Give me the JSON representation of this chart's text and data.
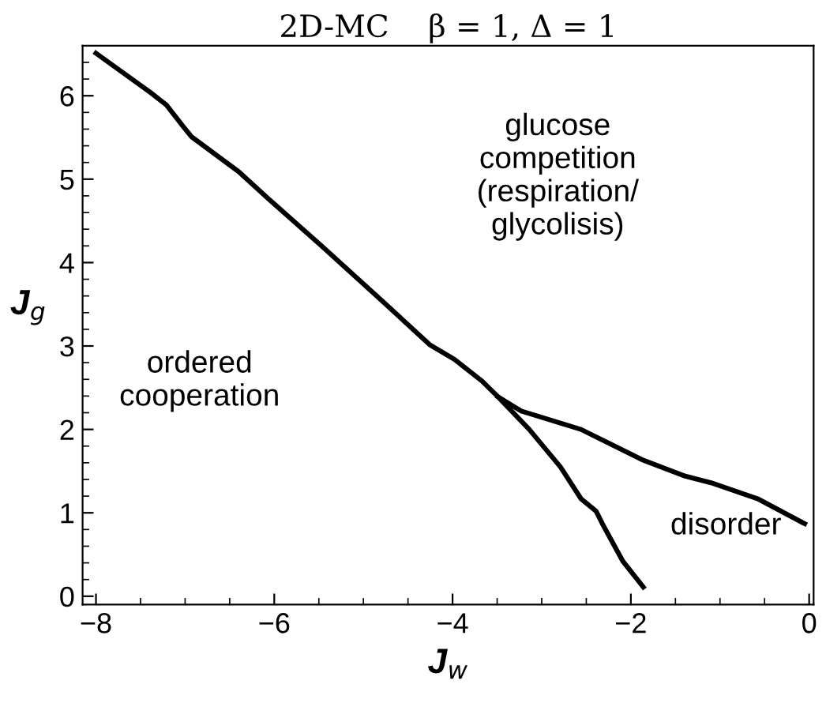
{
  "chart_data": {
    "type": "line",
    "title": "2D-MC    β = 1, Δ = 1",
    "xlabel": "J$_{w}$",
    "ylabel": "J$_{g}$",
    "xlim": [
      -8.15,
      0.05
    ],
    "ylim": [
      -0.1,
      6.6
    ],
    "xticks": [
      -8,
      -6,
      -4,
      -2,
      0
    ],
    "yticks": [
      0,
      1,
      2,
      3,
      4,
      5,
      6
    ],
    "grid": false,
    "legend": false,
    "marker": "none",
    "line_style": "solid",
    "series": [
      {
        "color": "#000000",
        "x": [
          -8,
          -7.39,
          -7.21,
          -7.02,
          -6.93,
          -6.4,
          -6.05,
          -5.47,
          -4.77,
          -4.25,
          -3.98,
          -3.67,
          -3.49,
          -3.14,
          -2.79,
          -2.56,
          -2.39,
          -2.32,
          -2.09,
          -1.86
        ],
        "values": [
          6.51,
          6.04,
          5.89,
          5.63,
          5.51,
          5.09,
          4.75,
          4.2,
          3.52,
          3.01,
          2.84,
          2.58,
          2.39,
          2.0,
          1.55,
          1.17,
          1.02,
          0.87,
          0.42,
          0.11
        ]
      },
      {
        "color": "#000000",
        "x": [
          -3.49,
          -3.23,
          -2.56,
          -1.86,
          -1.39,
          -1.1,
          -0.58,
          -0.05
        ],
        "values": [
          2.39,
          2.22,
          2.0,
          1.63,
          1.44,
          1.36,
          1.17,
          0.87
        ]
      }
    ],
    "annotations": [
      "glucose\ncompetition\n(respiration/\nglycolisis)",
      "ordered\ncooperation",
      "disorder"
    ]
  }
}
